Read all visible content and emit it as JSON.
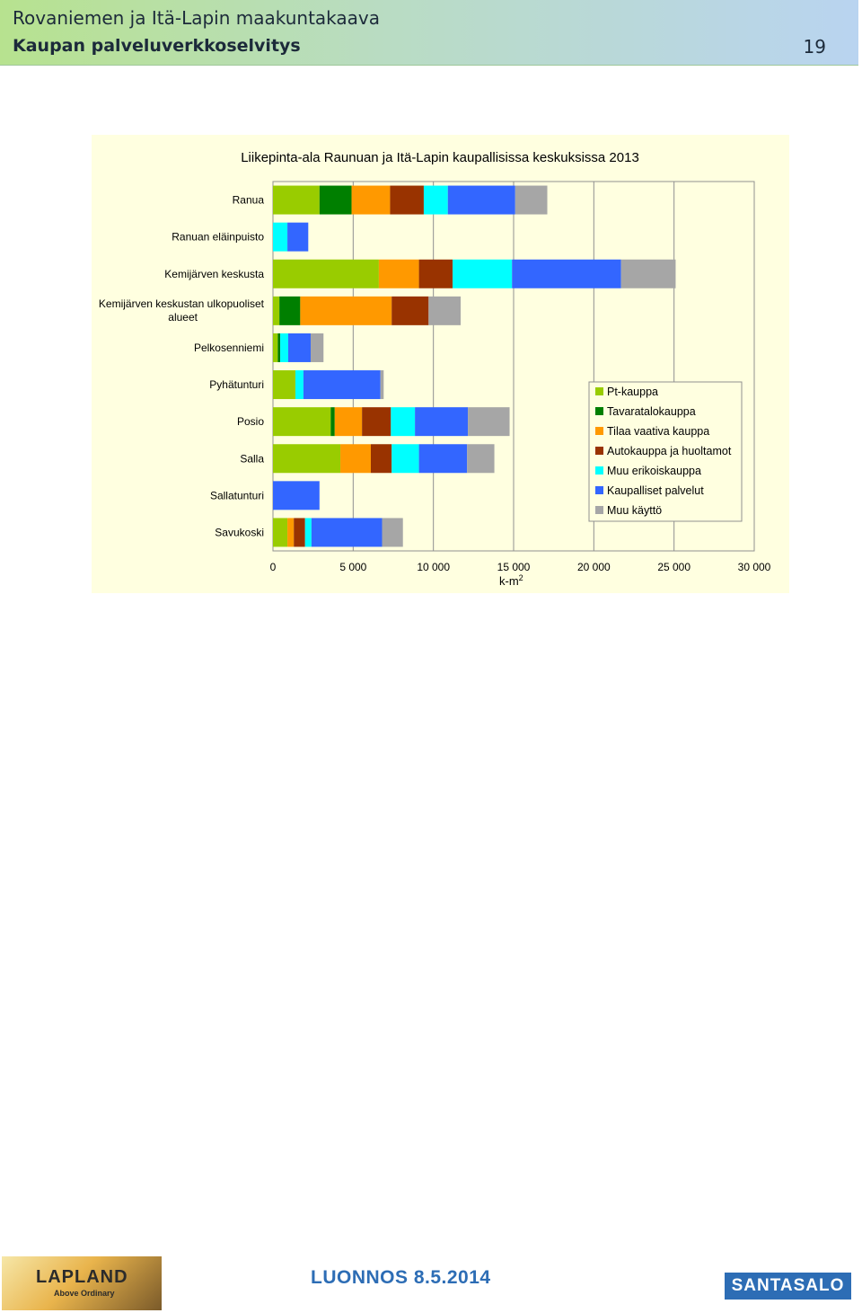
{
  "header": {
    "line1": "Rovaniemen ja Itä-Lapin maakuntakaava",
    "line2": "Kaupan palveluverkkoselvitys",
    "page_number": "19"
  },
  "footer": {
    "logo_left_title": "LAPLAND",
    "logo_left_subtitle": "Above Ordinary",
    "draft_label": "LUONNOS 8.5.2014",
    "logo_right": "SANTASALO"
  },
  "chart_data": {
    "type": "bar",
    "orientation": "horizontal",
    "stacked": true,
    "title": "Liikepinta-ala Raunuan ja Itä-Lapin kaupallisissa keskuksissa 2013",
    "xlabel": "k-m",
    "xlabel_superscript": "2",
    "xlim": [
      0,
      30000
    ],
    "xticks": [
      0,
      5000,
      10000,
      15000,
      20000,
      25000,
      30000
    ],
    "xtick_labels": [
      "0",
      "5 000",
      "10 000",
      "15 000",
      "20 000",
      "25 000",
      "30 000"
    ],
    "grid": true,
    "legend_position": "right",
    "categories": [
      "Ranua",
      "Ranuan eläinpuisto",
      "Kemijärven keskusta",
      "Kemijärven keskustan ulkopuoliset alueet",
      "Pelkosenniemi",
      "Pyhätunturi",
      "Posio",
      "Salla",
      "Sallatunturi",
      "Savukoski"
    ],
    "series": [
      {
        "name": "Pt-kauppa",
        "color": "#99cc00",
        "values": [
          2900,
          0,
          6600,
          400,
          300,
          1400,
          3600,
          4200,
          0,
          900
        ]
      },
      {
        "name": "Tavaratalokauppa",
        "color": "#007f00",
        "values": [
          2000,
          0,
          0,
          1300,
          150,
          0,
          250,
          0,
          0,
          0
        ]
      },
      {
        "name": "Tilaa vaativa kauppa",
        "color": "#ff9900",
        "values": [
          2400,
          0,
          2500,
          5700,
          0,
          0,
          1700,
          1900,
          0,
          400
        ]
      },
      {
        "name": "Autokauppa ja huoltamot",
        "color": "#993300",
        "values": [
          2100,
          0,
          2100,
          2300,
          0,
          0,
          1800,
          1300,
          0,
          700
        ]
      },
      {
        "name": "Muu erikoiskauppa",
        "color": "#00ffff",
        "values": [
          1500,
          900,
          3700,
          0,
          500,
          500,
          1500,
          1700,
          0,
          400
        ]
      },
      {
        "name": "Kaupalliset palvelut",
        "color": "#3366ff",
        "values": [
          4200,
          1300,
          6800,
          0,
          1400,
          4800,
          3300,
          3000,
          2900,
          4400
        ]
      },
      {
        "name": "Muu käyttö",
        "color": "#a6a6a6",
        "values": [
          2000,
          0,
          3400,
          2000,
          800,
          200,
          2600,
          1700,
          0,
          1300
        ]
      }
    ]
  }
}
